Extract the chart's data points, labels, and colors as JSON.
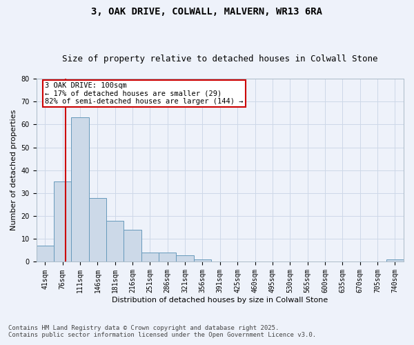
{
  "title1": "3, OAK DRIVE, COLWALL, MALVERN, WR13 6RA",
  "title2": "Size of property relative to detached houses in Colwall Stone",
  "xlabel": "Distribution of detached houses by size in Colwall Stone",
  "ylabel": "Number of detached properties",
  "bin_labels": [
    "41sqm",
    "76sqm",
    "111sqm",
    "146sqm",
    "181sqm",
    "216sqm",
    "251sqm",
    "286sqm",
    "321sqm",
    "356sqm",
    "391sqm",
    "425sqm",
    "460sqm",
    "495sqm",
    "530sqm",
    "565sqm",
    "600sqm",
    "635sqm",
    "670sqm",
    "705sqm",
    "740sqm"
  ],
  "bar_values": [
    7,
    35,
    63,
    28,
    18,
    14,
    4,
    4,
    3,
    1,
    0,
    0,
    0,
    0,
    0,
    0,
    0,
    0,
    0,
    0,
    1
  ],
  "bar_color": "#ccd9e8",
  "bar_edge_color": "#6699bb",
  "grid_color": "#cdd8e8",
  "background_color": "#eef2fa",
  "vline_color": "#cc0000",
  "annotation_text": "3 OAK DRIVE: 100sqm\n← 17% of detached houses are smaller (29)\n82% of semi-detached houses are larger (144) →",
  "annotation_box_facecolor": "#ffffff",
  "annotation_box_edgecolor": "#cc0000",
  "ylim": [
    0,
    80
  ],
  "yticks": [
    0,
    10,
    20,
    30,
    40,
    50,
    60,
    70,
    80
  ],
  "footnote1": "Contains HM Land Registry data © Crown copyright and database right 2025.",
  "footnote2": "Contains public sector information licensed under the Open Government Licence v3.0.",
  "title_fontsize": 10,
  "subtitle_fontsize": 9,
  "axis_label_fontsize": 8,
  "tick_fontsize": 7,
  "annotation_fontsize": 7.5,
  "footnote_fontsize": 6.5
}
